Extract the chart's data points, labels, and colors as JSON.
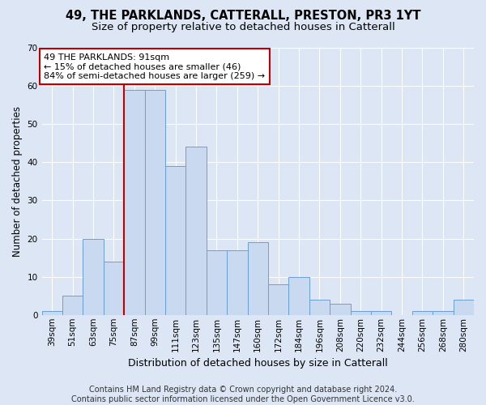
{
  "title1": "49, THE PARKLANDS, CATTERALL, PRESTON, PR3 1YT",
  "title2": "Size of property relative to detached houses in Catterall",
  "xlabel": "Distribution of detached houses by size in Catterall",
  "ylabel": "Number of detached properties",
  "footer1": "Contains HM Land Registry data © Crown copyright and database right 2024.",
  "footer2": "Contains public sector information licensed under the Open Government Licence v3.0.",
  "annotation_title": "49 THE PARKLANDS: 91sqm",
  "annotation_line1": "← 15% of detached houses are smaller (46)",
  "annotation_line2": "84% of semi-detached houses are larger (259) →",
  "bar_values": [
    1,
    5,
    20,
    14,
    59,
    59,
    39,
    44,
    17,
    17,
    19,
    8,
    10,
    4,
    3,
    1,
    1,
    0,
    1,
    1,
    4
  ],
  "categories": [
    "39sqm",
    "51sqm",
    "63sqm",
    "75sqm",
    "87sqm",
    "99sqm",
    "111sqm",
    "123sqm",
    "135sqm",
    "147sqm",
    "160sqm",
    "172sqm",
    "184sqm",
    "196sqm",
    "208sqm",
    "220sqm",
    "232sqm",
    "244sqm",
    "256sqm",
    "268sqm",
    "280sqm"
  ],
  "bar_color": "#c9d9ef",
  "bar_edge_color": "#6a9fd8",
  "vline_color": "#c00000",
  "vline_bar_index": 4,
  "ylim": [
    0,
    70
  ],
  "yticks": [
    0,
    10,
    20,
    30,
    40,
    50,
    60,
    70
  ],
  "bg_color": "#dce6f5",
  "annotation_box_color": "white",
  "annotation_box_edge": "#c00000",
  "grid_color": "white",
  "title_fontsize": 10.5,
  "subtitle_fontsize": 9.5,
  "annotation_fontsize": 8,
  "tick_fontsize": 7.5,
  "ylabel_fontsize": 8.5,
  "xlabel_fontsize": 9,
  "footer_fontsize": 7
}
